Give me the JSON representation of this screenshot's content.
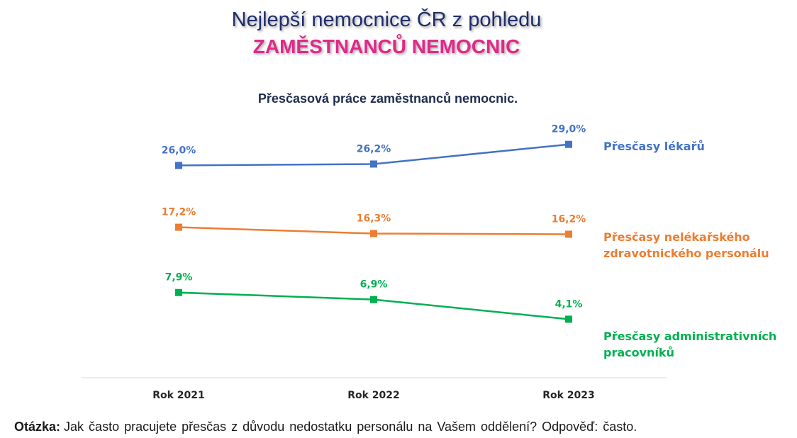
{
  "header": {
    "title_line1": "Nejlepší  nemocnice ČR z pohledu",
    "title_line2": "ZAMĚSTNANCŮ NEMOCNIC"
  },
  "chart_data": {
    "type": "line",
    "title": "Přesčasová práce zaměstnanců nemocnic.",
    "categories": [
      "Rok 2021",
      "Rok 2022",
      "Rok 2023"
    ],
    "series": [
      {
        "name_lines": [
          "Přesčasy lékařů"
        ],
        "values": [
          26.0,
          26.2,
          29.0
        ],
        "labels": [
          "26,0%",
          "26,2%",
          "29,0%"
        ],
        "color": "#4472c4"
      },
      {
        "name_lines": [
          "Přesčasy nelékařského",
          "zdravotnického personálu"
        ],
        "values": [
          17.2,
          16.3,
          16.2
        ],
        "labels": [
          "17,2%",
          "16,3%",
          "16,2%"
        ],
        "color": "#ed7d31"
      },
      {
        "name_lines": [
          "Přesčasy administrativních",
          "pracovníků"
        ],
        "values": [
          7.9,
          6.9,
          4.1
        ],
        "labels": [
          "7,9%",
          "6,9%",
          "4,1%"
        ],
        "color": "#00b050"
      }
    ],
    "ylim": [
      0,
      32
    ],
    "grid": false,
    "legend": "right, inline labels"
  },
  "footer": {
    "question_label": "Otázka:",
    "question_text": "Jak často pracujete přesčas z důvodu nedostatku personálu na Vašem oddělení? Odpověď: často."
  }
}
